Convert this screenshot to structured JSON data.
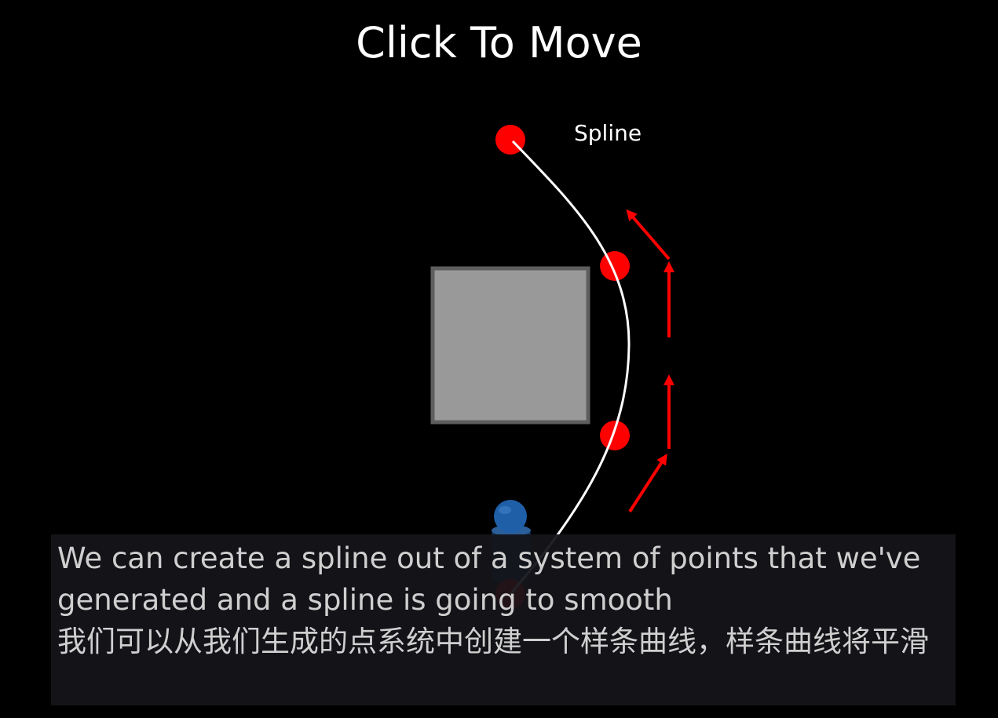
{
  "title": "Click To Move",
  "diagram": {
    "spline_label": "Spline",
    "colors": {
      "background": "#000000",
      "point": "#ff0000",
      "arrow": "#ff0000",
      "spline": "#ffffff",
      "obstacle_fill": "#999999",
      "obstacle_border": "#5e5e5e",
      "agent": "#1f5fa8"
    }
  },
  "subtitles": {
    "english": "We can create a spline out of a system of points that we've generated and a spline is going to smooth",
    "chinese": "我们可以从我们生成的点系统中创建一个样条曲线，样条曲线将平滑"
  }
}
